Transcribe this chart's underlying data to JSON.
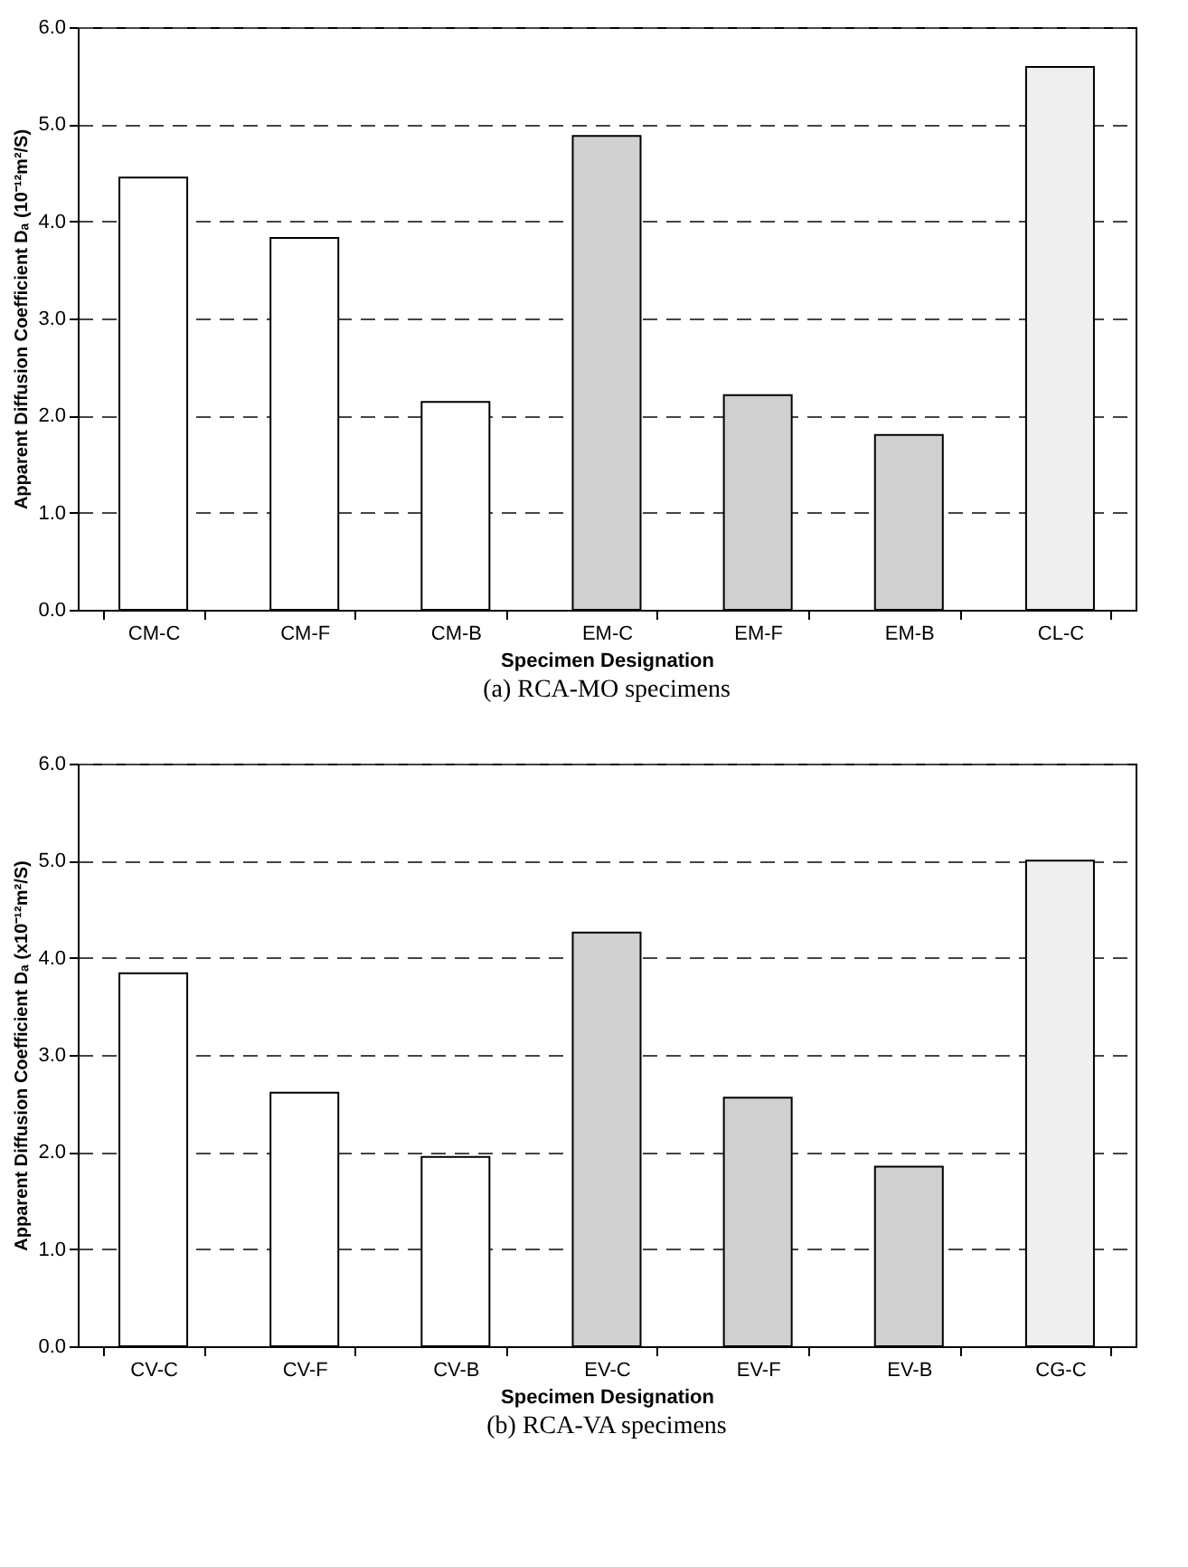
{
  "chart_data": [
    {
      "type": "bar",
      "title": "(a) RCA-MO specimens",
      "xlabel": "Specimen Designation",
      "ylabel": "Apparent Diffusion Coefficient Dₐ (10⁻¹²m²/S)",
      "categories": [
        "CM-C",
        "CM-F",
        "CM-B",
        "EM-C",
        "EM-F",
        "EM-B",
        "CL-C"
      ],
      "values": [
        4.45,
        3.83,
        2.14,
        4.88,
        2.21,
        1.8,
        5.59
      ],
      "colors": [
        "#ffffff",
        "#ffffff",
        "#ffffff",
        "#d0d0d0",
        "#d0d0d0",
        "#d0d0d0",
        "#efefef"
      ],
      "ylim": [
        0,
        6
      ],
      "yticks": [
        {
          "value": 0,
          "label": "0.0"
        },
        {
          "value": 1,
          "label": "1.0"
        },
        {
          "value": 2,
          "label": "2.0"
        },
        {
          "value": 3,
          "label": "3.0"
        },
        {
          "value": 4,
          "label": "4.0"
        },
        {
          "value": 5,
          "label": "5.0"
        },
        {
          "value": 6,
          "label": "6.0"
        }
      ],
      "grid": "y"
    },
    {
      "type": "bar",
      "title": "(b) RCA-VA specimens",
      "xlabel": "Specimen Designation",
      "ylabel": "Apparent Diffusion Coefficient Dₐ (x10⁻¹²m²/S)",
      "categories": [
        "CV-C",
        "CV-F",
        "CV-B",
        "EV-C",
        "EV-F",
        "EV-B",
        "CG-C"
      ],
      "values": [
        3.84,
        2.61,
        1.95,
        4.26,
        2.56,
        1.85,
        5.0
      ],
      "colors": [
        "#ffffff",
        "#ffffff",
        "#ffffff",
        "#d0d0d0",
        "#d0d0d0",
        "#d0d0d0",
        "#efefef"
      ],
      "ylim": [
        0,
        6
      ],
      "yticks": [
        {
          "value": 0,
          "label": "0.0"
        },
        {
          "value": 1,
          "label": "1.0"
        },
        {
          "value": 2,
          "label": "2.0"
        },
        {
          "value": 3,
          "label": "3.0"
        },
        {
          "value": 4,
          "label": "4.0"
        },
        {
          "value": 5,
          "label": "5.0"
        },
        {
          "value": 6,
          "label": "6.0"
        }
      ],
      "grid": "y"
    }
  ]
}
